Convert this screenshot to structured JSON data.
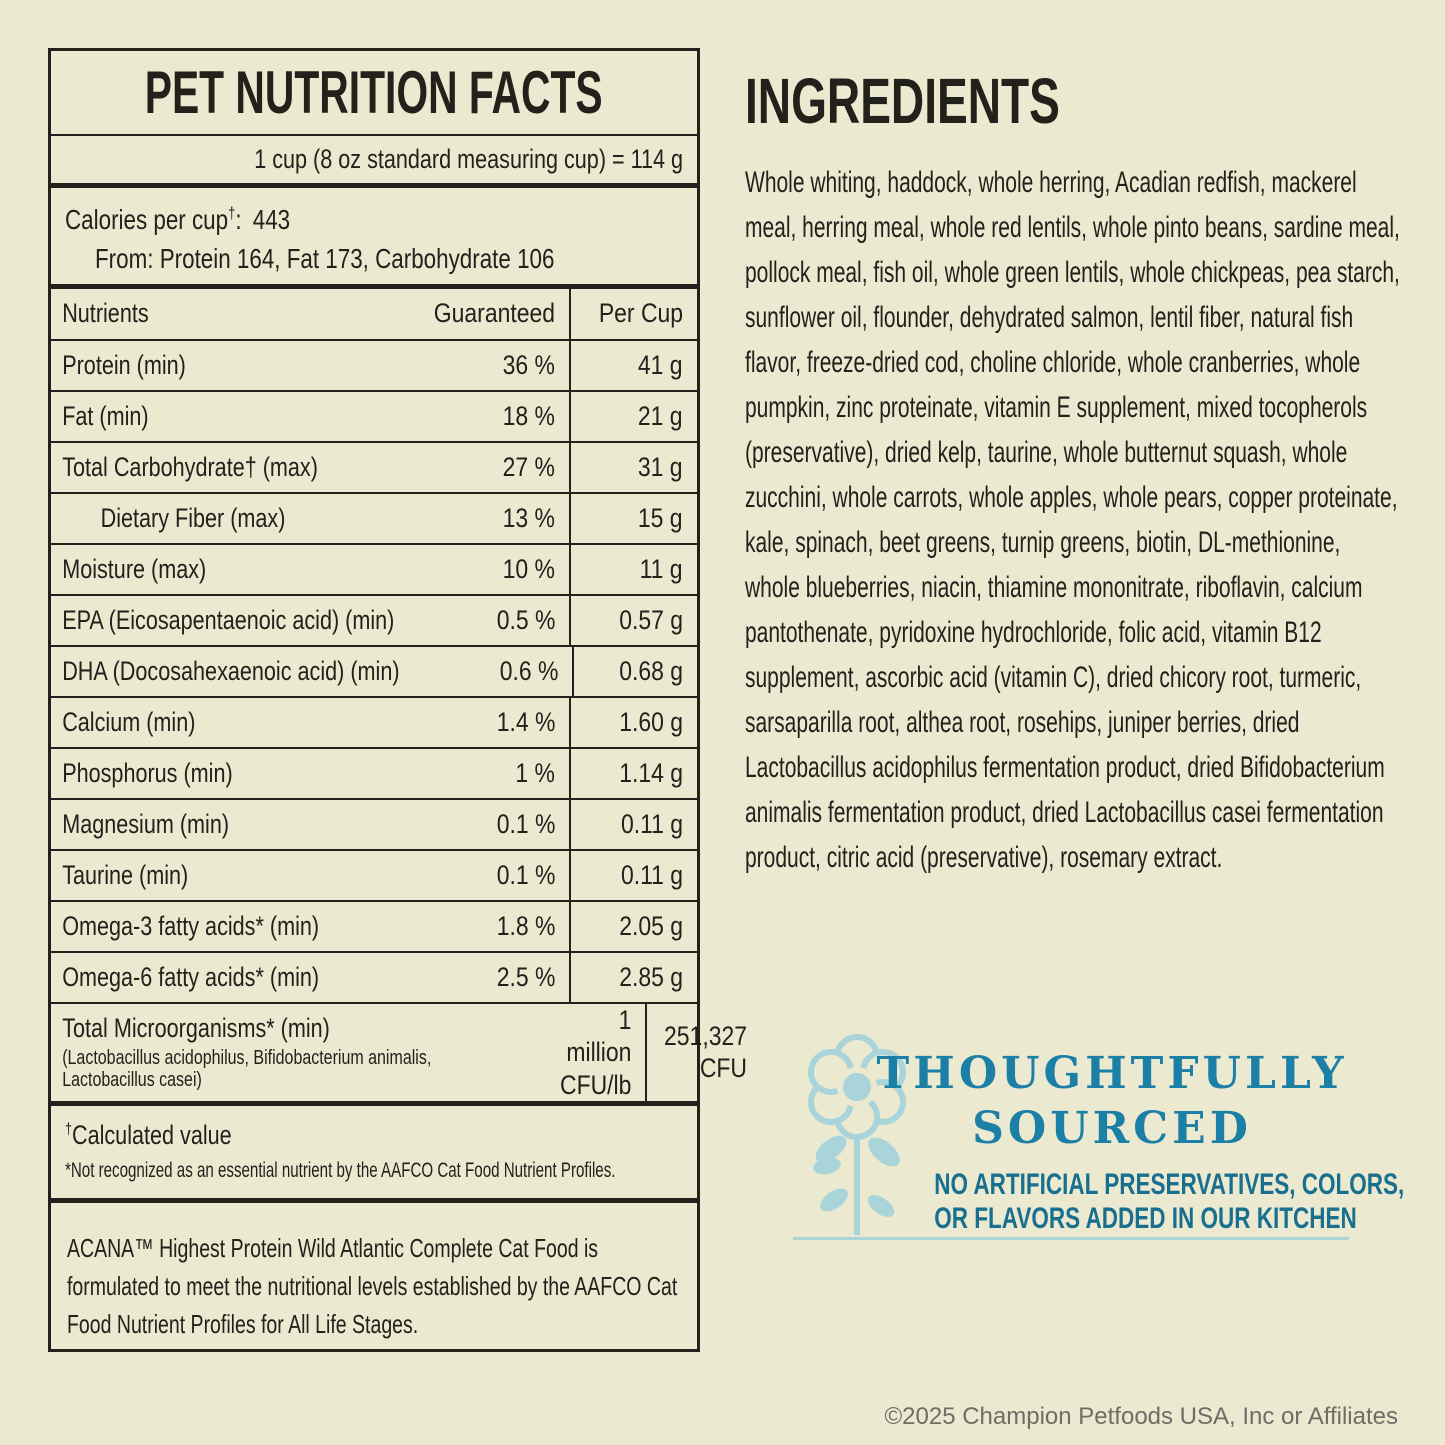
{
  "colors": {
    "background": "#ECE9D1",
    "ink": "#23211B",
    "teal_heading": "#1B7FA6",
    "teal_sub": "#186F8E",
    "flower": "#A9D4DA",
    "copyright_gray": "#6F6D64"
  },
  "panel": {
    "title": "PET NUTRITION FACTS",
    "serving_line": "1 cup (8 oz standard measuring cup) = 114 g",
    "calories": {
      "label": "Calories per cup",
      "dagger": "†",
      "sep": ":",
      "value": "443",
      "from_line": "From: Protein 164, Fat 173, Carbohydrate 106"
    },
    "table": {
      "header": {
        "nutrients": "Nutrients",
        "guaranteed": "Guaranteed",
        "per_cup": "Per Cup"
      },
      "rows": [
        {
          "name": "Protein (min)",
          "guaranteed": "36 %",
          "per_cup": "41 g"
        },
        {
          "name": "Fat (min)",
          "guaranteed": "18 %",
          "per_cup": "21 g"
        },
        {
          "name": "Total Carbohydrate† (max)",
          "guaranteed": "27 %",
          "per_cup": "31 g"
        },
        {
          "name": "Dietary Fiber (max)",
          "guaranteed": "13 %",
          "per_cup": "15 g",
          "indent": true
        },
        {
          "name": "Moisture (max)",
          "guaranteed": "10 %",
          "per_cup": "11 g"
        },
        {
          "name": "EPA (Eicosapentaenoic acid) (min)",
          "guaranteed": "0.5 %",
          "per_cup": "0.57 g"
        },
        {
          "name": "DHA (Docosahexaenoic acid) (min)",
          "guaranteed": "0.6 %",
          "per_cup": "0.68 g"
        },
        {
          "name": "Calcium (min)",
          "guaranteed": "1.4 %",
          "per_cup": "1.60 g"
        },
        {
          "name": "Phosphorus (min)",
          "guaranteed": "1 %",
          "per_cup": "1.14 g"
        },
        {
          "name": "Magnesium (min)",
          "guaranteed": "0.1 %",
          "per_cup": "0.11 g"
        },
        {
          "name": "Taurine (min)",
          "guaranteed": "0.1 %",
          "per_cup": "0.11 g"
        },
        {
          "name": "Omega-3 fatty acids* (min)",
          "guaranteed": "1.8 %",
          "per_cup": "2.05 g"
        },
        {
          "name": "Omega-6 fatty acids* (min)",
          "guaranteed": "2.5 %",
          "per_cup": "2.85 g"
        }
      ],
      "micro_row": {
        "name": "Total Microorganisms* (min)",
        "sub": "(Lactobacillus acidophilus, Bifidobacterium animalis, Lactobacillus casei)",
        "guaranteed": "1 million CFU/lb",
        "per_cup": "251,327 CFU"
      }
    },
    "footnotes": {
      "dagger": "†",
      "calculated": "Calculated value",
      "aafco": "*Not recognized as an essential nutrient by the AAFCO Cat Food Nutrient Profiles."
    },
    "statement": "ACANA™ Highest Protein Wild Atlantic Complete Cat Food is formulated to meet the nutritional levels established by the AAFCO Cat Food Nutrient Profiles for All Life Stages."
  },
  "ingredients": {
    "title": "INGREDIENTS",
    "text": "Whole whiting, haddock, whole herring, Acadian redfish, mackerel meal, herring meal, whole red lentils, whole pinto beans, sardine meal, pollock meal, fish oil, whole green lentils, whole chickpeas, pea starch, sunflower oil, flounder, dehydrated salmon, lentil fiber, natural fish flavor, freeze-dried cod, choline chloride, whole cranberries, whole pumpkin, zinc proteinate, vitamin E supplement, mixed tocopherols (preservative), dried kelp, taurine, whole butternut squash, whole zucchini, whole carrots, whole apples, whole pears, copper proteinate, kale, spinach, beet greens, turnip greens, biotin, DL-methionine, whole blueberries, niacin, thiamine mononitrate, riboflavin, calcium pantothenate, pyridoxine hydrochloride, folic acid, vitamin B12 supplement, ascorbic acid (vitamin C), dried chicory root, turmeric, sarsaparilla root, althea root, rosehips, juniper berries, dried Lactobacillus acidophilus fermentation product, dried Bifidobacterium animalis fermentation product, dried Lactobacillus casei fermentation product, citric acid (preservative), rosemary extract."
  },
  "badge": {
    "line1": "THOUGHTFULLY",
    "line2": "SOURCED",
    "sub1": "NO ARTIFICIAL PRESERVATIVES, COLORS,",
    "sub2": "OR FLAVORS ADDED IN OUR KITCHEN",
    "icon": "flower-icon"
  },
  "footer": {
    "copyright": "©2025 Champion Petfoods USA, Inc or Affiliates"
  }
}
